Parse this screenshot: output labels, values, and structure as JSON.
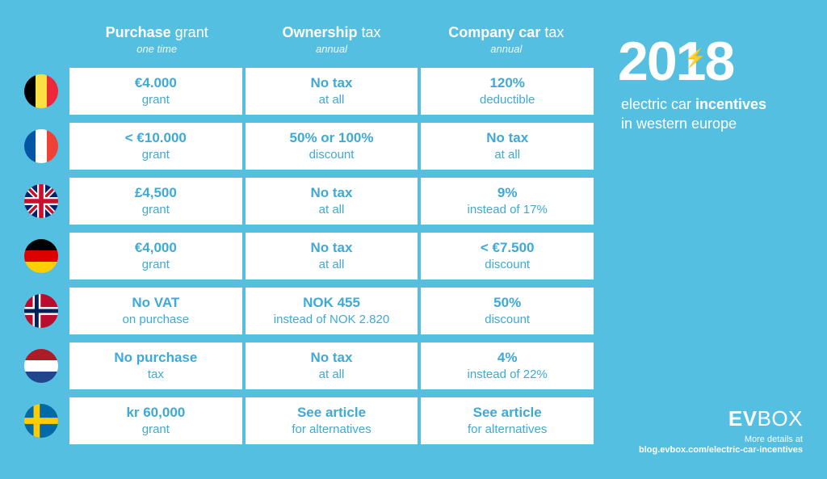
{
  "colors": {
    "background": "#55bfe2",
    "cell_bg": "#ffffff",
    "cell_text": "#3fa9d6",
    "header_text": "#ffffff"
  },
  "headers": [
    {
      "bold": "Purchase",
      "light": "grant",
      "sub": "one time"
    },
    {
      "bold": "Ownership",
      "light": "tax",
      "sub": "annual"
    },
    {
      "bold": "Company car",
      "light": "tax",
      "sub": "annual"
    }
  ],
  "rows": [
    {
      "country": "belgium",
      "cells": [
        {
          "val": "€4.000",
          "sub": "grant"
        },
        {
          "val": "No tax",
          "sub": "at all"
        },
        {
          "val": "120%",
          "sub": "deductible"
        }
      ]
    },
    {
      "country": "france",
      "cells": [
        {
          "val": "< €10.000",
          "sub": "grant"
        },
        {
          "val": "50% or 100%",
          "sub": "discount"
        },
        {
          "val": "No tax",
          "sub": "at all"
        }
      ]
    },
    {
      "country": "uk",
      "cells": [
        {
          "val": "£4,500",
          "sub": "grant"
        },
        {
          "val": "No tax",
          "sub": "at all"
        },
        {
          "val": "9%",
          "sub": "instead of 17%"
        }
      ]
    },
    {
      "country": "germany",
      "cells": [
        {
          "val": "€4,000",
          "sub": "grant"
        },
        {
          "val": "No tax",
          "sub": "at all"
        },
        {
          "val": "< €7.500",
          "sub": "discount"
        }
      ]
    },
    {
      "country": "norway",
      "cells": [
        {
          "val": "No VAT",
          "sub": "on purchase"
        },
        {
          "val": "NOK 455",
          "sub": "instead of NOK 2.820"
        },
        {
          "val": "50%",
          "sub": "discount"
        }
      ]
    },
    {
      "country": "netherlands",
      "cells": [
        {
          "val": "No purchase",
          "sub": "tax"
        },
        {
          "val": "No tax",
          "sub": "at all"
        },
        {
          "val": "4%",
          "sub": "instead of 22%"
        }
      ]
    },
    {
      "country": "sweden",
      "cells": [
        {
          "val": "kr 60,000",
          "sub": "grant"
        },
        {
          "val": "See article",
          "sub": "for alternatives"
        },
        {
          "val": "See article",
          "sub": "for alternatives"
        }
      ]
    }
  ],
  "title": {
    "year": "2018",
    "line1_a": "electric car ",
    "line1_b": "incentives",
    "line2": "in western europe"
  },
  "brand": {
    "b": "EV",
    "l": "BOX"
  },
  "footer": {
    "label": "More details at",
    "url": "blog.evbox.com/electric-car-incentives"
  },
  "flag_svgs": {
    "belgium": "<svg viewBox='0 0 3 3'><rect width='1' height='3' fill='#000'/><rect x='1' width='1' height='3' fill='#fae042'/><rect x='2' width='1' height='3' fill='#ed2939'/></svg>",
    "france": "<svg viewBox='0 0 3 3'><rect width='1' height='3' fill='#0055a4'/><rect x='1' width='1' height='3' fill='#fff'/><rect x='2' width='1' height='3' fill='#ef4135'/></svg>",
    "uk": "<svg viewBox='0 0 60 60'><rect width='60' height='60' fill='#012169'/><path d='M0,0 L60,60 M60,0 L0,60' stroke='#fff' stroke-width='10'/><path d='M0,0 L60,60 M60,0 L0,60' stroke='#c8102e' stroke-width='5'/><path d='M30,0 V60 M0,30 H60' stroke='#fff' stroke-width='14'/><path d='M30,0 V60 M0,30 H60' stroke='#c8102e' stroke-width='8'/></svg>",
    "germany": "<svg viewBox='0 0 3 3'><rect width='3' height='1' fill='#000'/><rect y='1' width='3' height='1' fill='#dd0000'/><rect y='2' width='3' height='1' fill='#ffce00'/></svg>",
    "norway": "<svg viewBox='0 0 60 60'><rect width='60' height='60' fill='#ba0c2f'/><path d='M22,0 V60 M0,30 H60' stroke='#fff' stroke-width='14'/><path d='M22,0 V60 M0,30 H60' stroke='#00205b' stroke-width='7'/></svg>",
    "netherlands": "<svg viewBox='0 0 3 3'><rect width='3' height='1' fill='#ae1c28'/><rect y='1' width='3' height='1' fill='#fff'/><rect y='2' width='3' height='1' fill='#21468b'/></svg>",
    "sweden": "<svg viewBox='0 0 60 60'><rect width='60' height='60' fill='#006aa7'/><path d='M22,0 V60 M0,30 H60' stroke='#fecc00' stroke-width='11'/></svg>"
  }
}
